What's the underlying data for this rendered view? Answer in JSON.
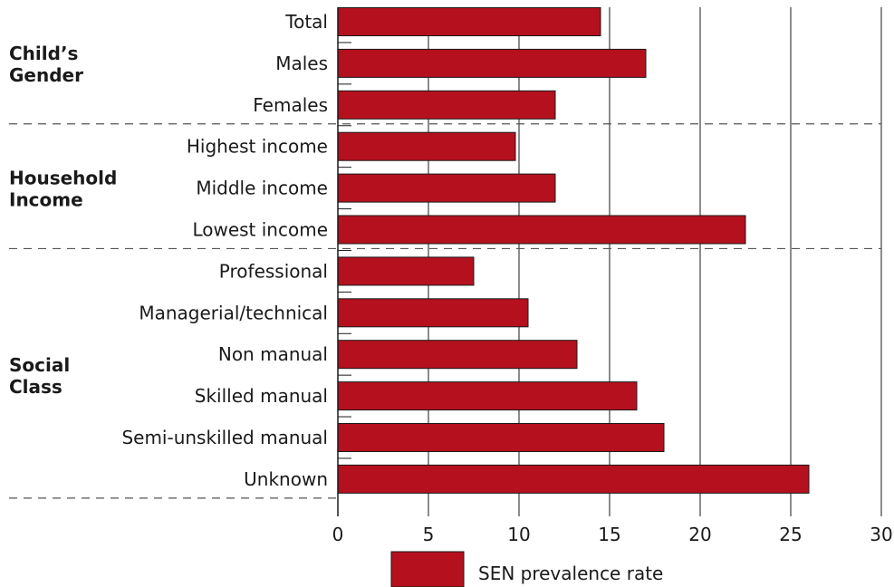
{
  "chart_data": {
    "type": "bar",
    "orientation": "horizontal",
    "categories": [
      "Total",
      "Males",
      "Females",
      "Highest income",
      "Middle income",
      "Lowest income",
      "Professional",
      "Managerial/technical",
      "Non manual",
      "Skilled manual",
      "Semi-unskilled manual",
      "Unknown"
    ],
    "groups": [
      {
        "label": "Child’s\nGender",
        "categories": [
          "Total",
          "Males",
          "Females"
        ]
      },
      {
        "label": "Household\nIncome",
        "categories": [
          "Highest income",
          "Middle income",
          "Lowest income"
        ]
      },
      {
        "label": "Social\nClass",
        "categories": [
          "Professional",
          "Managerial/technical",
          "Non manual",
          "Skilled manual",
          "Semi-unskilled manual",
          "Unknown"
        ]
      }
    ],
    "series": [
      {
        "name": "SEN prevalence rate",
        "values": [
          14.5,
          17.0,
          12.0,
          9.8,
          12.0,
          22.5,
          7.5,
          10.5,
          13.2,
          16.5,
          18.0,
          26.0
        ],
        "color": "#b5101e"
      }
    ],
    "xlim": [
      0,
      30
    ],
    "xticks": [
      0,
      5,
      10,
      15,
      20,
      25,
      30
    ],
    "grid": "vertical",
    "legend": "bottom",
    "title": "",
    "xlabel": "",
    "ylabel": ""
  }
}
